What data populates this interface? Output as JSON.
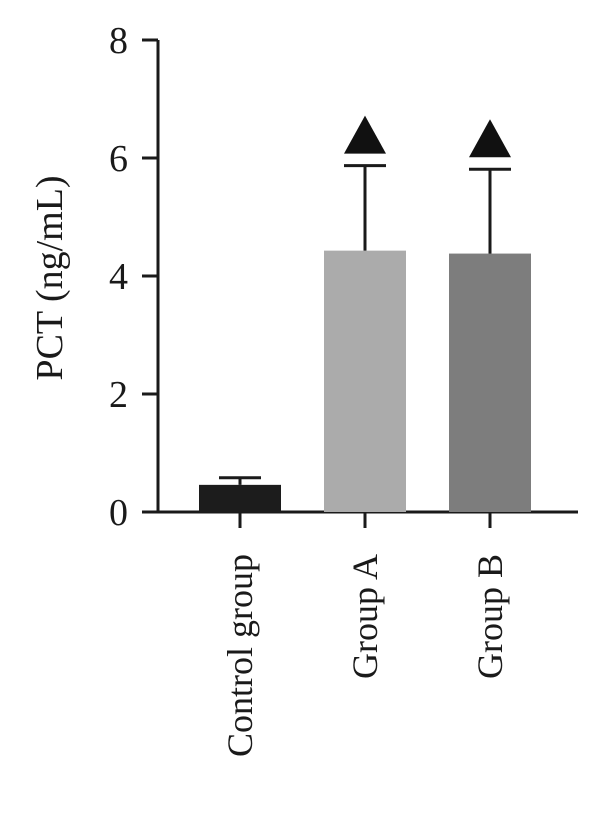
{
  "chart_data": {
    "type": "bar",
    "title": "",
    "xlabel": "",
    "ylabel": "PCT (ng/mL)",
    "ylim": [
      0,
      8
    ],
    "yticks": [
      0,
      2,
      4,
      6,
      8
    ],
    "ytick_labels": [
      "0",
      "2",
      "4",
      "6",
      "8"
    ],
    "grid": false,
    "categories": [
      "Control group",
      "Group A",
      "Group B"
    ],
    "values": [
      0.46,
      4.43,
      4.38
    ],
    "error_upper": [
      0.58,
      5.87,
      5.81
    ],
    "significance_markers": [
      false,
      true,
      true
    ],
    "marker_shape": "triangle",
    "colors": [
      "#1c1c1c",
      "#ababab",
      "#7d7d7d"
    ]
  }
}
